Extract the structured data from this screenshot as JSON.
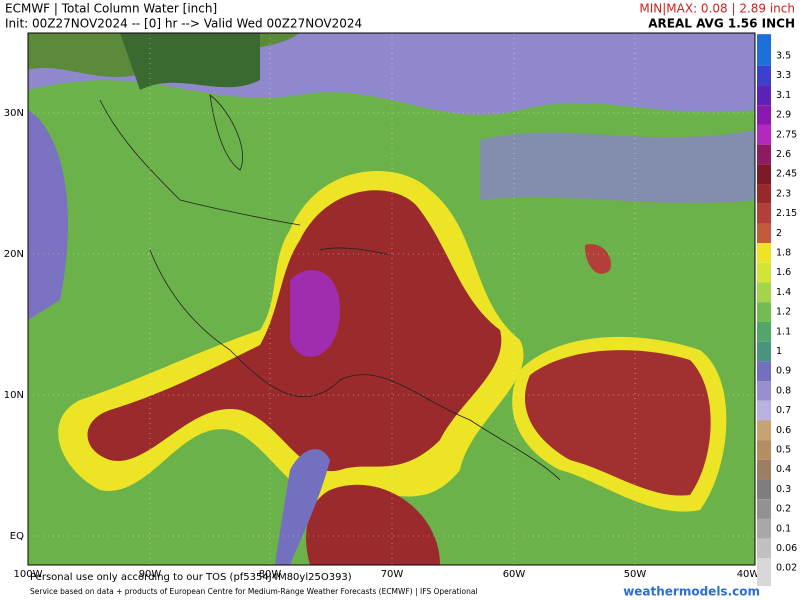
{
  "header": {
    "title": "ECMWF | Total Column Water [inch]",
    "init": "Init: 00Z27NOV2024 -- [0] hr --> Valid Wed 00Z27NOV2024",
    "minmax": "MIN|MAX: 0.08 | 2.89 inch",
    "average": "AREAL AVG 1.56 INCH"
  },
  "map": {
    "latitude_labels": [
      "30N",
      "20N",
      "10N",
      "EQ"
    ],
    "longitude_labels": [
      "100W",
      "90W",
      "80W",
      "70W",
      "60W",
      "50W",
      "40W"
    ]
  },
  "colorbar": {
    "labels": [
      "3.5",
      "3.3",
      "3.1",
      "2.9",
      "2.75",
      "2.6",
      "2.45",
      "2.3",
      "2.15",
      "2",
      "1.8",
      "1.6",
      "1.4",
      "1.2",
      "1.1",
      "1",
      "0.9",
      "0.8",
      "0.7",
      "0.6",
      "0.5",
      "0.4",
      "0.3",
      "0.2",
      "0.1",
      "0.06",
      "0.02"
    ],
    "colors": [
      "#1f6fd8",
      "#3b40cf",
      "#5a22b5",
      "#8a18b0",
      "#b428c0",
      "#8e1a62",
      "#7d1a28",
      "#98282a",
      "#b24038",
      "#c45a3c",
      "#ece424",
      "#d2e43a",
      "#a4d44a",
      "#74bc52",
      "#52a66a",
      "#4a947e",
      "#7470c0",
      "#9690d0",
      "#b8b2e2",
      "#c8a272",
      "#b48e60",
      "#9c7e62",
      "#7e7e7e",
      "#929292",
      "#a8a8a8",
      "#c0c0c0",
      "#d8d8d8"
    ]
  },
  "footer": {
    "tos": "Personal use only according to our TOS (pf5354J4M80yl25O393)",
    "service": "Service based on data + products of European Centre for Medium-Range Weather Forecasts (ECMWF) | IFS Operational",
    "brand": "weathermodels.com"
  }
}
